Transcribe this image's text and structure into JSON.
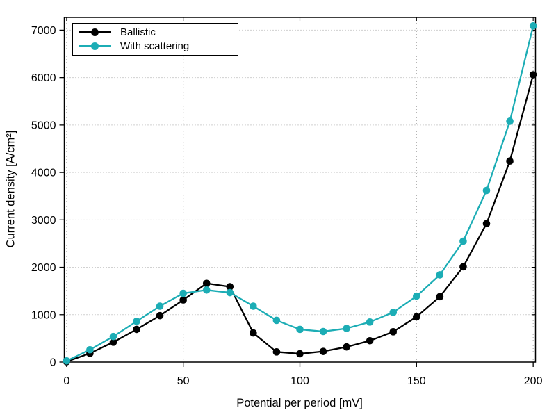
{
  "chart_data": {
    "type": "line",
    "title": "",
    "xlabel": "Potential per period [mV]",
    "ylabel": "Current density [A/cm²]",
    "xlim": [
      -1,
      201
    ],
    "ylim": [
      0,
      7270
    ],
    "grid": "dotted",
    "legend_position": "top-left",
    "x": [
      0,
      10,
      20,
      30,
      40,
      50,
      60,
      70,
      80,
      90,
      100,
      110,
      120,
      130,
      140,
      150,
      160,
      170,
      180,
      190,
      200
    ],
    "series": [
      {
        "name": "Ballistic",
        "color": "#000000",
        "values": [
          10,
          185,
          420,
          690,
          980,
          1310,
          1660,
          1590,
          615,
          215,
          175,
          225,
          320,
          450,
          640,
          955,
          1380,
          2010,
          2920,
          4240,
          6060
        ]
      },
      {
        "name": "With scattering",
        "color": "#1CADB5",
        "values": [
          25,
          260,
          540,
          860,
          1180,
          1450,
          1520,
          1465,
          1180,
          880,
          690,
          645,
          710,
          845,
          1050,
          1390,
          1840,
          2550,
          3620,
          5080,
          7090
        ]
      }
    ],
    "x_ticks": {
      "values": [
        0,
        50,
        100,
        150,
        200
      ],
      "labels": [
        "0",
        "50",
        "100",
        "150",
        "200"
      ]
    },
    "y_ticks": {
      "values": [
        0,
        1000,
        2000,
        3000,
        4000,
        5000,
        6000,
        7000
      ],
      "labels": [
        "0",
        "1000",
        "2000",
        "3000",
        "4000",
        "5000",
        "6000",
        "7000"
      ]
    }
  },
  "colors": {
    "background": "#ffffff",
    "axis": "#000000",
    "grid": "#a3a3a3",
    "ballistic": "#000000",
    "scattering": "#1CADB5"
  }
}
